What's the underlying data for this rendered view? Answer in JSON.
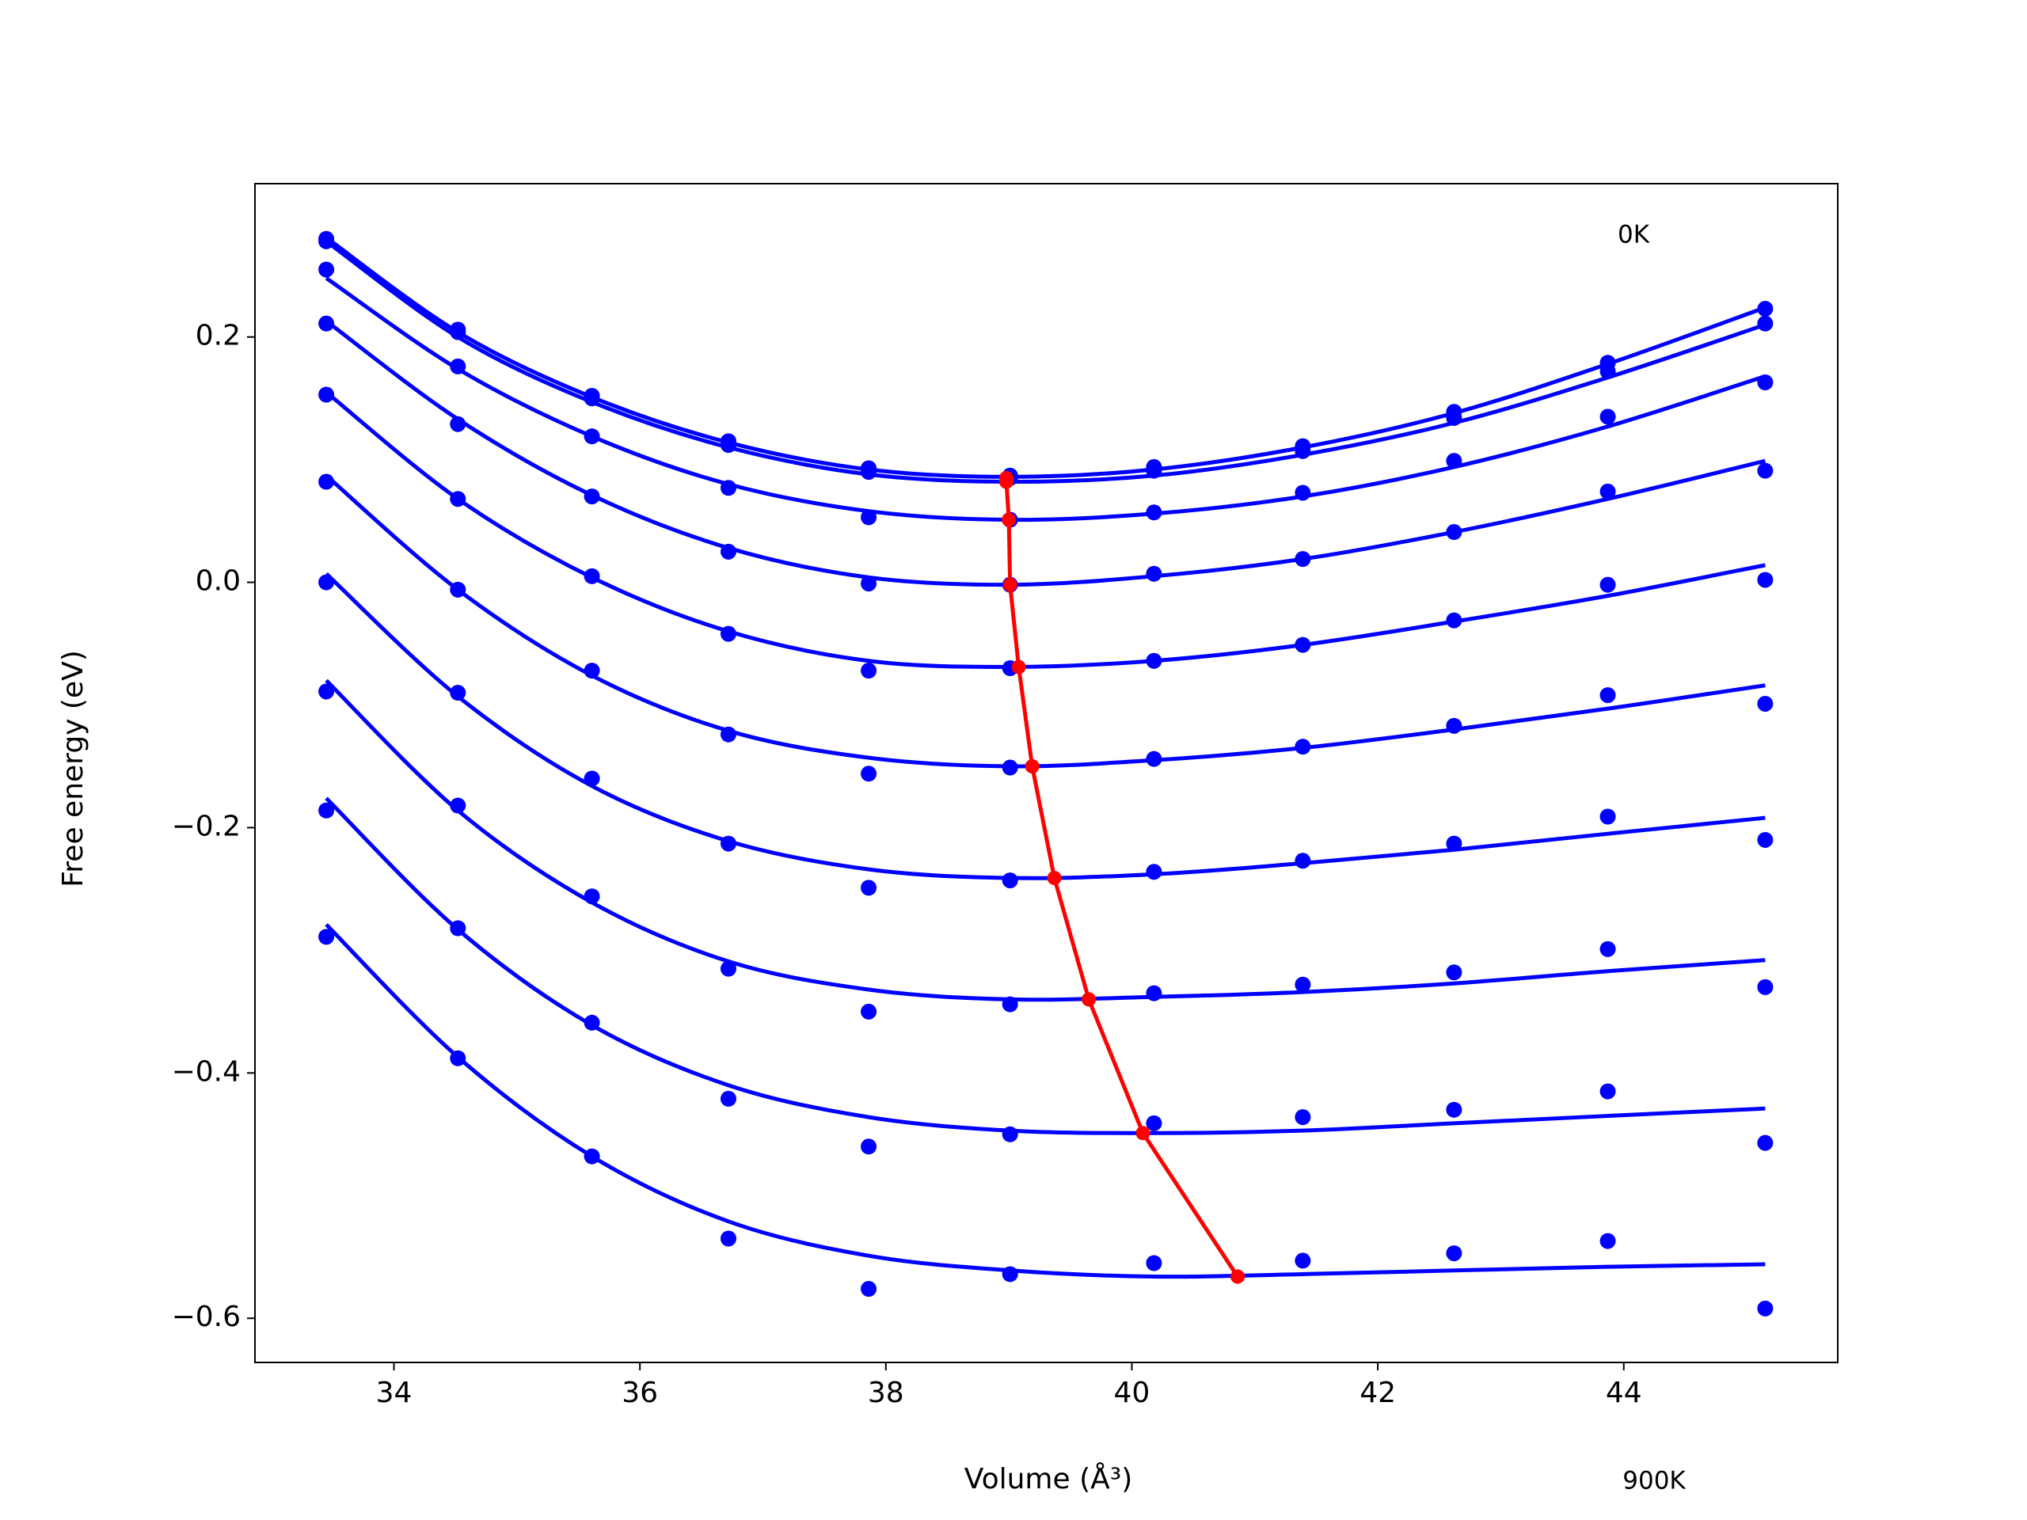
{
  "chart_data": {
    "type": "scatter",
    "xlabel": "Volume (Å³)",
    "ylabel": "Free energy (eV)",
    "annotations": [
      {
        "text": "0K"
      },
      {
        "text": "900K"
      }
    ],
    "xlim": [
      32.87,
      45.74
    ],
    "ylim": [
      -0.636,
      0.325
    ],
    "xticks": [
      34,
      36,
      38,
      40,
      42,
      44
    ],
    "yticks": [
      {
        "value": -0.6,
        "label": "−0.6"
      },
      {
        "value": -0.4,
        "label": "−0.4"
      },
      {
        "value": -0.2,
        "label": "−0.2"
      },
      {
        "value": 0,
        "label": "0.0"
      },
      0.2
    ],
    "x": [
      33.45,
      34.52,
      35.61,
      36.72,
      37.86,
      39.01,
      40.18,
      41.39,
      42.62,
      43.87,
      45.15
    ],
    "series": [
      {
        "color": "#0000ff",
        "values": [
          0.28,
          0.206,
          0.152,
          0.115,
          0.093,
          0.087,
          0.094,
          0.111,
          0.139,
          0.179,
          0.223
        ]
      },
      {
        "color": "#0000ff",
        "values": [
          0.278,
          0.204,
          0.15,
          0.112,
          0.09,
          0.085,
          0.091,
          0.107,
          0.134,
          0.172,
          0.211
        ]
      },
      {
        "color": "#0000ff",
        "values": [
          0.255,
          0.176,
          0.119,
          0.077,
          0.053,
          0.051,
          0.057,
          0.073,
          0.099,
          0.135,
          0.163
        ]
      },
      {
        "color": "#0000ff",
        "values": [
          0.211,
          0.129,
          0.07,
          0.025,
          -0.001,
          -0.002,
          0.007,
          0.019,
          0.041,
          0.074,
          0.091
        ]
      },
      {
        "color": "#0000ff",
        "values": [
          0.153,
          0.068,
          0.005,
          -0.042,
          -0.072,
          -0.07,
          -0.064,
          -0.051,
          -0.031,
          -0.002,
          0.002
        ]
      },
      {
        "color": "#0000ff",
        "values": [
          0.082,
          -0.006,
          -0.072,
          -0.124,
          -0.156,
          -0.151,
          -0.144,
          -0.134,
          -0.117,
          -0.092,
          -0.099
        ]
      },
      {
        "color": "#0000ff",
        "values": [
          0.0,
          -0.09,
          -0.16,
          -0.213,
          -0.249,
          -0.243,
          -0.236,
          -0.227,
          -0.213,
          -0.191,
          -0.21
        ]
      },
      {
        "color": "#0000ff",
        "values": [
          -0.089,
          -0.182,
          -0.256,
          -0.315,
          -0.35,
          -0.344,
          -0.335,
          -0.328,
          -0.318,
          -0.299,
          -0.33
        ]
      },
      {
        "color": "#0000ff",
        "values": [
          -0.186,
          -0.282,
          -0.359,
          -0.421,
          -0.46,
          -0.45,
          -0.441,
          -0.436,
          -0.43,
          -0.415,
          -0.457
        ]
      },
      {
        "color": "#0000ff",
        "values": [
          -0.289,
          -0.388,
          -0.468,
          -0.535,
          -0.576,
          -0.564,
          -0.555,
          -0.553,
          -0.547,
          -0.537,
          -0.592
        ]
      }
    ],
    "fits": [
      {
        "color": "#0000ff",
        "values": [
          0.281,
          0.204,
          0.151,
          0.114,
          0.092,
          0.086,
          0.092,
          0.11,
          0.138,
          0.178,
          0.224
        ]
      },
      {
        "color": "#0000ff",
        "values": [
          0.278,
          0.2,
          0.147,
          0.11,
          0.088,
          0.082,
          0.087,
          0.104,
          0.13,
          0.167,
          0.21
        ]
      },
      {
        "color": "#0000ff",
        "values": [
          0.248,
          0.174,
          0.119,
          0.08,
          0.058,
          0.051,
          0.056,
          0.07,
          0.094,
          0.127,
          0.168
        ]
      },
      {
        "color": "#0000ff",
        "values": [
          0.213,
          0.133,
          0.071,
          0.028,
          0.004,
          -0.002,
          0.005,
          0.019,
          0.041,
          0.068,
          0.099
        ]
      },
      {
        "color": "#0000ff",
        "values": [
          0.155,
          0.068,
          0.004,
          -0.04,
          -0.064,
          -0.069,
          -0.064,
          -0.051,
          -0.032,
          -0.011,
          0.014
        ]
      },
      {
        "color": "#0000ff",
        "values": [
          0.087,
          -0.006,
          -0.076,
          -0.121,
          -0.143,
          -0.15,
          -0.145,
          -0.135,
          -0.12,
          -0.103,
          -0.084
        ]
      },
      {
        "color": "#0000ff",
        "values": [
          0.007,
          -0.093,
          -0.166,
          -0.211,
          -0.234,
          -0.241,
          -0.238,
          -0.229,
          -0.218,
          -0.205,
          -0.192
        ]
      },
      {
        "color": "#0000ff",
        "values": [
          -0.08,
          -0.186,
          -0.261,
          -0.309,
          -0.332,
          -0.34,
          -0.338,
          -0.334,
          -0.327,
          -0.317,
          -0.308
        ]
      },
      {
        "color": "#0000ff",
        "values": [
          -0.176,
          -0.283,
          -0.361,
          -0.41,
          -0.436,
          -0.447,
          -0.449,
          -0.447,
          -0.441,
          -0.435,
          -0.429
        ]
      },
      {
        "color": "#0000ff",
        "values": [
          -0.279,
          -0.387,
          -0.468,
          -0.521,
          -0.549,
          -0.561,
          -0.566,
          -0.564,
          -0.561,
          -0.558,
          -0.556
        ]
      }
    ],
    "minima": {
      "color": "#ff0000",
      "x": [
        38.98,
        38.98,
        39.0,
        39.01,
        39.08,
        39.19,
        39.37,
        39.65,
        40.09,
        40.86
      ],
      "values": [
        0.085,
        0.082,
        0.051,
        -0.002,
        -0.069,
        -0.15,
        -0.241,
        -0.34,
        -0.449,
        -0.566
      ]
    }
  }
}
